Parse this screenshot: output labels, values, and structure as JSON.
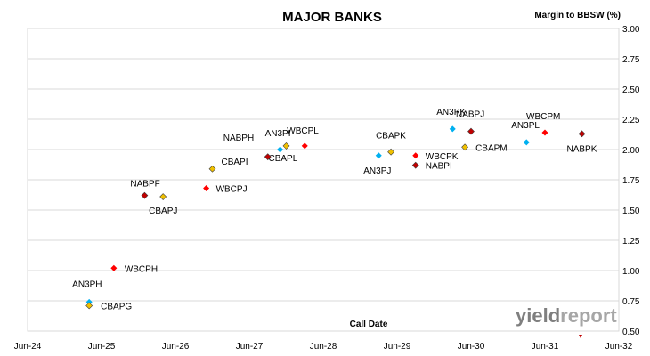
{
  "chart_data": {
    "type": "scatter",
    "title": "MAJOR BANKS",
    "ylabel": "Margin to BBSW (%)",
    "xlabel": "Call Date",
    "ylim": [
      0.5,
      3.0
    ],
    "yticks": [
      "0.50",
      "0.75",
      "1.00",
      "1.25",
      "1.50",
      "1.75",
      "2.00",
      "2.25",
      "2.50",
      "2.75",
      "3.00"
    ],
    "xlim": [
      "2024-06",
      "2032-06"
    ],
    "xticks": [
      "Jun-24",
      "Jun-25",
      "Jun-26",
      "Jun-27",
      "Jun-28",
      "Jun-29",
      "Jun-30",
      "Jun-31",
      "Jun-32"
    ],
    "grid": "horizontal",
    "legend": "none",
    "colors": {
      "AN3": "#00b0f0",
      "CBA": "#f0c000",
      "NAB": "#c00000",
      "WBC": "#ff0000"
    },
    "series": [
      {
        "name": "AN3",
        "points": [
          {
            "label": "AN3PH",
            "x": "2025-04",
            "y": 0.74
          },
          {
            "label": "AN3PI",
            "x": "2027-11",
            "y": 2.0
          },
          {
            "label": "AN3PJ",
            "x": "2029-03",
            "y": 1.95
          },
          {
            "label": "AN3PK",
            "x": "2030-03",
            "y": 2.17
          },
          {
            "label": "AN3PL",
            "x": "2031-03",
            "y": 2.06
          }
        ]
      },
      {
        "name": "CBA",
        "points": [
          {
            "label": "CBAPG",
            "x": "2025-04",
            "y": 0.71
          },
          {
            "label": "CBAPJ",
            "x": "2026-04",
            "y": 1.61
          },
          {
            "label": "CBAPI",
            "x": "2026-12",
            "y": 1.84
          },
          {
            "label": "CBAPL",
            "x": "2027-12",
            "y": 2.03
          },
          {
            "label": "CBAPK",
            "x": "2029-05",
            "y": 1.98
          },
          {
            "label": "CBAPM",
            "x": "2030-05",
            "y": 2.02
          }
        ]
      },
      {
        "name": "NAB",
        "points": [
          {
            "label": "NABPF",
            "x": "2026-01",
            "y": 1.62
          },
          {
            "label": "NABPH",
            "x": "2027-09",
            "y": 1.94
          },
          {
            "label": "NABPI",
            "x": "2029-09",
            "y": 1.87
          },
          {
            "label": "NABPJ",
            "x": "2030-06",
            "y": 2.15
          },
          {
            "label": "NABPK",
            "x": "2031-12",
            "y": 2.13
          }
        ]
      },
      {
        "name": "WBC",
        "points": [
          {
            "label": "WBCPH",
            "x": "2025-08",
            "y": 1.02
          },
          {
            "label": "WBCPJ",
            "x": "2026-11",
            "y": 1.68
          },
          {
            "label": "WBCPL",
            "x": "2028-03",
            "y": 2.03
          },
          {
            "label": "WBCPK",
            "x": "2029-09",
            "y": 1.95
          },
          {
            "label": "WBCPM",
            "x": "2031-06",
            "y": 2.14
          }
        ]
      }
    ]
  },
  "watermark": {
    "part1": "yield",
    "part2": "report"
  }
}
